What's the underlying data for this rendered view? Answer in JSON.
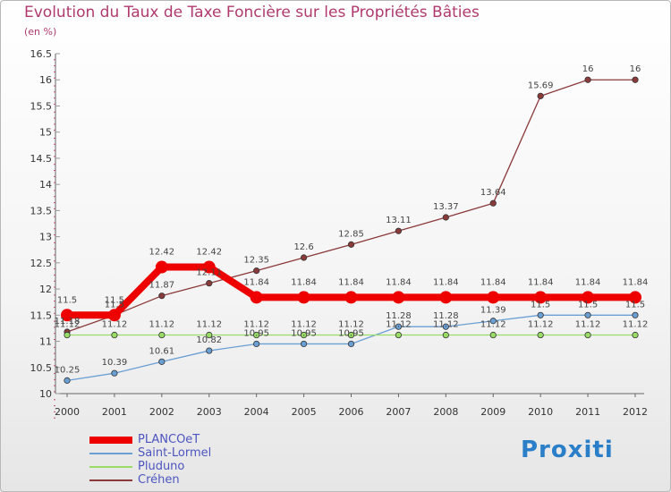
{
  "title": "Evolution du Taux de Taxe Foncière sur les Propriétés Bâties",
  "unit_label": "(en %)",
  "brand": "Proxiti",
  "chart_data": {
    "type": "line",
    "title": "Evolution du Taux de Taxe Foncière sur les Propriétés Bâties",
    "ylabel": "(en %)",
    "x": [
      "2000",
      "2001",
      "2002",
      "2003",
      "2004",
      "2005",
      "2006",
      "2007",
      "2008",
      "2009",
      "2010",
      "2011",
      "2012"
    ],
    "ylim": [
      10,
      16.5
    ],
    "yticks": [
      "10",
      "10.5",
      "11",
      "11.5",
      "12",
      "12.5",
      "13",
      "13.5",
      "14",
      "14.5",
      "15",
      "15.5",
      "16",
      "16.5"
    ],
    "legend_position": "bottom-left",
    "series": [
      {
        "name": "PLANCOeT",
        "color": "#ee0000",
        "values": [
          11.5,
          11.5,
          12.42,
          12.42,
          11.84,
          11.84,
          11.84,
          11.84,
          11.84,
          11.84,
          11.84,
          11.84,
          11.84
        ],
        "labels": [
          "11.5",
          "11.5",
          "12.42",
          "12.42",
          "11.84",
          "11.84",
          "11.84",
          "11.84",
          "11.84",
          "11.84",
          "11.84",
          "11.84",
          "11.84"
        ]
      },
      {
        "name": "Saint-Lormel",
        "color": "#6a9fd4",
        "values": [
          10.25,
          10.39,
          10.61,
          10.82,
          10.95,
          10.95,
          10.95,
          11.28,
          11.28,
          11.39,
          11.5,
          11.5,
          11.5
        ],
        "labels": [
          "10.25",
          "10.39",
          "10.61",
          "10.82",
          "10.95",
          "10.95",
          "10.95",
          "11.28",
          "11.28",
          "11.39",
          "11.5",
          "11.5",
          "11.5"
        ]
      },
      {
        "name": "Pluduno",
        "color": "#99dd66",
        "values": [
          11.12,
          11.12,
          11.12,
          11.12,
          11.12,
          11.12,
          11.12,
          11.12,
          11.12,
          11.12,
          11.12,
          11.12,
          11.12
        ],
        "labels": [
          "11.12",
          "11.12",
          "11.12",
          "11.12",
          "11.12",
          "11.12",
          "11.12",
          "11.12",
          "11.12",
          "11.12",
          "11.12",
          "11.12",
          "11.12"
        ]
      },
      {
        "name": "Créhen",
        "color": "#8b3a3a",
        "values": [
          11.18,
          11.5,
          11.87,
          12.11,
          12.35,
          12.6,
          12.85,
          13.11,
          13.37,
          13.64,
          15.69,
          16,
          16
        ],
        "labels": [
          "11.18",
          "11.5",
          "11.87",
          "12.11",
          "12.35",
          "12.6",
          "12.85",
          "13.11",
          "13.37",
          "13.64",
          "15.69",
          "16",
          "16"
        ]
      }
    ]
  }
}
